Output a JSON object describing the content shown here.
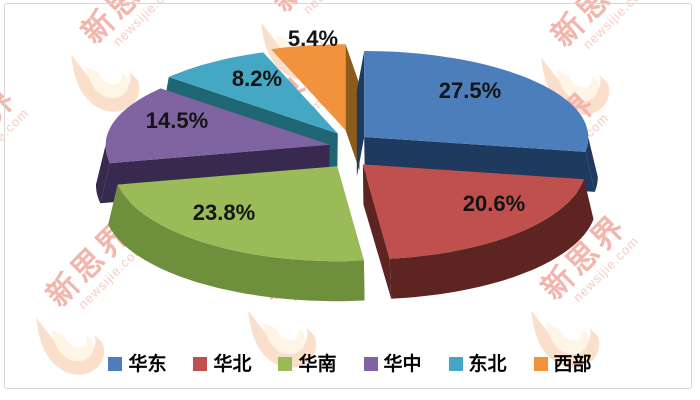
{
  "watermark": {
    "brand": "新思界",
    "domain": "newsijie.com"
  },
  "colors": {
    "background": "#ffffff",
    "frame": "#d6d6d6",
    "data_label": "#141414",
    "watermark_text": "#e8796a"
  },
  "chart_data": {
    "type": "pie",
    "pie_style": "3d-exploded",
    "title": "",
    "categories": [
      "华东",
      "华北",
      "华南",
      "华中",
      "东北",
      "西部"
    ],
    "values": [
      27.5,
      20.6,
      23.8,
      14.5,
      8.2,
      5.4
    ],
    "labels": [
      "27.5%",
      "20.6%",
      "23.8%",
      "14.5%",
      "8.2%",
      "5.4%"
    ],
    "colors": [
      "#4C7EBB",
      "#C0504D",
      "#9BBB59",
      "#8064A2",
      "#44A8C5",
      "#F2923D"
    ],
    "side_colors": [
      "#1F3A5F",
      "#5E2421",
      "#6E8F3C",
      "#372A4E",
      "#1F6674",
      "#8D5B1B"
    ],
    "legend_position": "bottom",
    "start_angle_deg": -90,
    "clockwise": true,
    "units": "%"
  }
}
